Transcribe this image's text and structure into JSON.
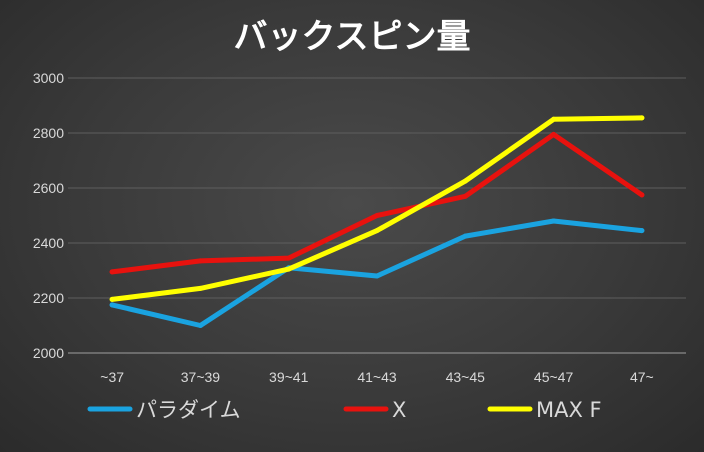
{
  "chart_data": {
    "type": "line",
    "title": "バックスピン量",
    "categories": [
      "~37",
      "37~39",
      "39~41",
      "41~43",
      "43~45",
      "45~47",
      "47~"
    ],
    "ylim": [
      2000,
      3000
    ],
    "yticks": [
      2000,
      2200,
      2400,
      2600,
      2800,
      3000
    ],
    "grid": true,
    "legend_position": "bottom",
    "series": [
      {
        "name": "パラダイム",
        "color": "#1aa3e0",
        "values": [
          2175,
          2100,
          2310,
          2280,
          2425,
          2480,
          2445
        ]
      },
      {
        "name": "X",
        "color": "#e8120e",
        "values": [
          2295,
          2335,
          2345,
          2500,
          2570,
          2795,
          2575
        ]
      },
      {
        "name": "MAX F",
        "color": "#ffff00",
        "values": [
          2195,
          2235,
          2305,
          2445,
          2625,
          2850,
          2855
        ]
      }
    ]
  }
}
